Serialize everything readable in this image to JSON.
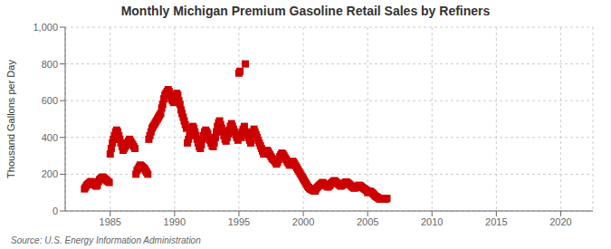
{
  "chart_data": {
    "type": "scatter",
    "title": "Monthly Michigan Premium Gasoline Retail Sales by Refiners",
    "ylabel": "Thousand Gallons per Day",
    "annotations": [
      "Source: U.S. Energy Information Administration"
    ],
    "color": "#cc0000",
    "marker": "square",
    "grid": true,
    "xlim": [
      1981.5,
      2022.5
    ],
    "xticks": [
      1985,
      1990,
      1995,
      2000,
      2005,
      2010,
      2015,
      2020
    ],
    "ylim": [
      0,
      1000
    ],
    "yticks": [
      0,
      200,
      400,
      600,
      800,
      {
        "value": 1000,
        "label": "1,000"
      }
    ],
    "x": [
      1983.0,
      1983.08,
      1983.17,
      1983.25,
      1983.33,
      1983.42,
      1983.5,
      1983.58,
      1983.67,
      1983.75,
      1983.83,
      1983.92,
      1984.0,
      1984.08,
      1984.17,
      1984.25,
      1984.33,
      1984.42,
      1984.5,
      1984.58,
      1984.67,
      1984.75,
      1984.83,
      1984.92,
      1985.0,
      1985.08,
      1985.17,
      1985.25,
      1985.33,
      1985.42,
      1985.5,
      1985.58,
      1985.67,
      1985.75,
      1985.83,
      1985.92,
      1986.0,
      1986.08,
      1986.17,
      1986.25,
      1986.33,
      1986.42,
      1986.5,
      1986.58,
      1986.67,
      1986.75,
      1986.83,
      1986.92,
      1987.0,
      1987.08,
      1987.17,
      1987.25,
      1987.33,
      1987.42,
      1987.5,
      1987.58,
      1987.67,
      1987.75,
      1987.83,
      1987.92,
      1988.0,
      1988.08,
      1988.17,
      1988.25,
      1988.33,
      1988.42,
      1988.5,
      1988.58,
      1988.67,
      1988.75,
      1988.83,
      1988.92,
      1989.0,
      1989.08,
      1989.17,
      1989.25,
      1989.33,
      1989.42,
      1989.5,
      1989.58,
      1989.67,
      1989.75,
      1989.83,
      1989.92,
      1990.0,
      1990.08,
      1990.17,
      1990.25,
      1990.33,
      1990.42,
      1990.5,
      1990.58,
      1990.67,
      1990.75,
      1990.83,
      1990.92,
      1991.0,
      1991.08,
      1991.17,
      1991.25,
      1991.33,
      1991.42,
      1991.5,
      1991.58,
      1991.67,
      1991.75,
      1991.83,
      1991.92,
      1992.0,
      1992.08,
      1992.17,
      1992.25,
      1992.33,
      1992.42,
      1992.5,
      1992.58,
      1992.67,
      1992.75,
      1992.83,
      1992.92,
      1993.0,
      1993.08,
      1993.17,
      1993.25,
      1993.33,
      1993.42,
      1993.5,
      1993.58,
      1993.67,
      1993.75,
      1993.83,
      1993.92,
      1994.0,
      1994.08,
      1994.17,
      1994.25,
      1994.33,
      1994.42,
      1994.5,
      1994.58,
      1994.67,
      1994.75,
      1994.83,
      1994.92,
      1995.0,
      1995.08,
      1995.17,
      1995.25,
      1995.33,
      1995.42,
      1995.5,
      1995.58,
      1995.67,
      1995.75,
      1995.83,
      1995.92,
      1996.0,
      1996.08,
      1996.17,
      1996.25,
      1996.33,
      1996.42,
      1996.5,
      1996.58,
      1996.67,
      1996.75,
      1996.83,
      1996.92,
      1997.0,
      1997.08,
      1997.17,
      1997.25,
      1997.33,
      1997.42,
      1997.5,
      1997.58,
      1997.67,
      1997.75,
      1997.83,
      1997.92,
      1998.0,
      1998.08,
      1998.17,
      1998.25,
      1998.33,
      1998.42,
      1998.5,
      1998.58,
      1998.67,
      1998.75,
      1998.83,
      1998.92,
      1999.0,
      1999.08,
      1999.17,
      1999.25,
      1999.33,
      1999.42,
      1999.5,
      1999.58,
      1999.67,
      1999.75,
      1999.83,
      1999.92,
      2000.0,
      2000.08,
      2000.17,
      2000.25,
      2000.33,
      2000.42,
      2000.5,
      2000.58,
      2000.67,
      2000.75,
      2000.83,
      2000.92,
      2001.0,
      2001.08,
      2001.17,
      2001.25,
      2001.33,
      2001.42,
      2001.5,
      2001.58,
      2001.67,
      2001.75,
      2001.83,
      2001.92,
      2002.0,
      2002.08,
      2002.17,
      2002.25,
      2002.33,
      2002.42,
      2002.5,
      2002.58,
      2002.67,
      2002.75,
      2002.83,
      2002.92,
      2003.0,
      2003.08,
      2003.17,
      2003.25,
      2003.33,
      2003.42,
      2003.5,
      2003.58,
      2003.67,
      2003.75,
      2003.83,
      2003.92,
      2004.0,
      2004.08,
      2004.17,
      2004.25,
      2004.33,
      2004.42,
      2004.5,
      2004.58,
      2004.67,
      2004.75,
      2004.83,
      2004.92,
      2005.0,
      2005.08,
      2005.17,
      2005.25,
      2005.33,
      2005.42,
      2005.5,
      2005.58,
      2005.67,
      2005.75,
      2005.83,
      2005.92,
      2006.0,
      2006.08,
      2006.17,
      2006.25,
      2006.33,
      2006.42,
      2006.5
    ],
    "values": [
      120,
      130,
      140,
      145,
      150,
      155,
      160,
      155,
      150,
      145,
      140,
      135,
      140,
      160,
      170,
      175,
      180,
      185,
      180,
      175,
      170,
      165,
      160,
      155,
      310,
      340,
      370,
      390,
      410,
      430,
      440,
      430,
      410,
      390,
      370,
      350,
      330,
      340,
      350,
      360,
      370,
      380,
      390,
      380,
      370,
      360,
      350,
      340,
      200,
      220,
      230,
      240,
      250,
      245,
      240,
      235,
      230,
      220,
      210,
      200,
      390,
      410,
      430,
      450,
      460,
      470,
      480,
      490,
      500,
      510,
      520,
      530,
      560,
      580,
      610,
      630,
      640,
      650,
      660,
      650,
      630,
      610,
      600,
      590,
      610,
      630,
      640,
      630,
      600,
      580,
      550,
      530,
      510,
      490,
      470,
      450,
      370,
      390,
      410,
      430,
      450,
      460,
      450,
      430,
      410,
      390,
      370,
      350,
      340,
      360,
      390,
      410,
      430,
      440,
      430,
      420,
      400,
      385,
      370,
      355,
      350,
      370,
      400,
      430,
      460,
      480,
      490,
      470,
      450,
      430,
      410,
      390,
      380,
      400,
      420,
      440,
      460,
      475,
      460,
      445,
      430,
      415,
      400,
      385,
      750,
      760,
      400,
      430,
      445,
      460,
      800,
      430,
      415,
      400,
      385,
      370,
      415,
      430,
      445,
      430,
      415,
      400,
      385,
      370,
      355,
      340,
      325,
      310,
      310,
      320,
      330,
      325,
      315,
      305,
      295,
      285,
      280,
      275,
      265,
      255,
      265,
      280,
      295,
      305,
      315,
      310,
      300,
      290,
      280,
      270,
      260,
      250,
      250,
      265,
      270,
      265,
      255,
      245,
      235,
      225,
      215,
      205,
      195,
      185,
      175,
      165,
      155,
      145,
      135,
      128,
      122,
      118,
      115,
      112,
      110,
      108,
      120,
      128,
      135,
      140,
      145,
      150,
      155,
      150,
      145,
      140,
      135,
      130,
      135,
      140,
      150,
      155,
      160,
      165,
      160,
      155,
      150,
      145,
      140,
      135,
      138,
      145,
      150,
      155,
      158,
      155,
      150,
      145,
      140,
      135,
      130,
      125,
      125,
      128,
      132,
      136,
      140,
      138,
      132,
      128,
      124,
      120,
      116,
      112,
      100,
      104,
      108,
      104,
      100,
      95,
      88,
      82,
      78,
      74,
      70,
      66,
      64,
      66,
      68,
      66,
      64,
      66,
      68
    ]
  }
}
